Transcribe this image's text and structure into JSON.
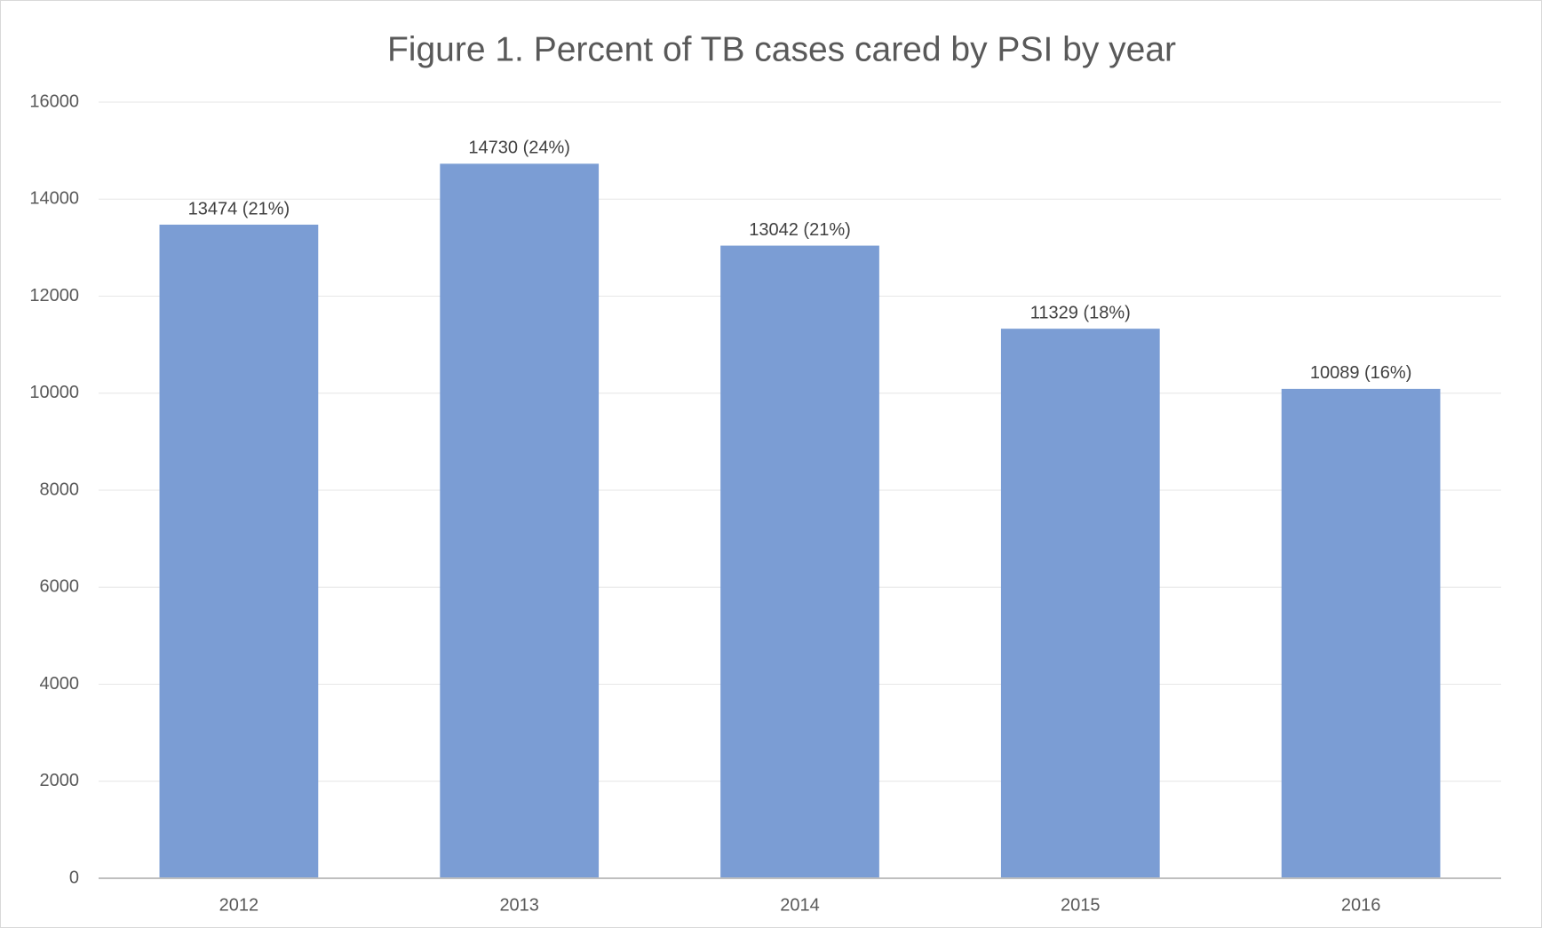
{
  "chart_data": {
    "type": "bar",
    "title": "Figure 1. Percent of TB cases cared by PSI by year",
    "categories": [
      "2012",
      "2013",
      "2014",
      "2015",
      "2016"
    ],
    "values": [
      13474,
      14730,
      13042,
      11329,
      10089
    ],
    "value_labels": [
      "13474 (21%)",
      "14730 (24%)",
      "13042 (21%)",
      "11329 (18%)",
      "10089 (16%)"
    ],
    "color": "#7b9dd4",
    "ylim": [
      0,
      16000
    ],
    "yticks": [
      0,
      2000,
      4000,
      6000,
      8000,
      10000,
      12000,
      14000,
      16000
    ],
    "grid": true
  }
}
